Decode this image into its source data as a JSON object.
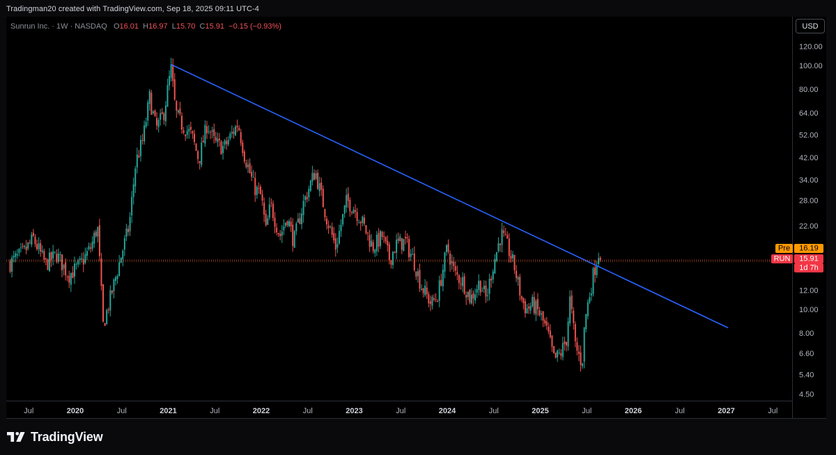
{
  "header": {
    "caption": "Tradingman20 created with TradingView.com, Sep 18, 2025 09:11 UTC-4"
  },
  "legend": {
    "symbol": "Sunrun Inc. · 1W · NASDAQ",
    "o_label": "O",
    "o_value": "16.01",
    "h_label": "H",
    "h_value": "16.97",
    "l_label": "L",
    "l_value": "15.70",
    "c_label": "C",
    "c_value": "15.91",
    "change": "−0.15 (−0.93%)"
  },
  "currency_button": "USD",
  "price_badges": {
    "pre_label": "Pre",
    "pre_value": "16.19",
    "run_label": "RUN",
    "run_value": "15.91",
    "countdown": "1d 7h"
  },
  "brand": {
    "name": "TradingView"
  },
  "colors": {
    "up": "#26a69a",
    "down": "#ef5350",
    "trendline": "#2962ff",
    "last_price_line": "#ef5350",
    "pre_badge": "#ff9800",
    "run_badge": "#f23645"
  },
  "chart_data": {
    "type": "candlestick",
    "symbol": "RUN",
    "interval": "1W",
    "y_scale": "log",
    "ylim": [
      4.4,
      125
    ],
    "y_ticks": [
      4.5,
      5.4,
      6.6,
      8.0,
      10.0,
      12.0,
      15.91,
      16.19,
      22.0,
      28.0,
      34.0,
      42.0,
      52.0,
      64.0,
      80.0,
      100.0,
      120.0
    ],
    "y_tick_labels": [
      "4.50",
      "5.40",
      "6.60",
      "8.00",
      "10.00",
      "12.00",
      "",
      "",
      "22.00",
      "28.00",
      "34.00",
      "42.00",
      "52.00",
      "64.00",
      "80.00",
      "100.00",
      "120.00"
    ],
    "x_ticks": [
      {
        "t": 2019.5,
        "label": "Jul",
        "bold": false
      },
      {
        "t": 2020.0,
        "label": "2020",
        "bold": true
      },
      {
        "t": 2020.5,
        "label": "Jul",
        "bold": false
      },
      {
        "t": 2021.0,
        "label": "2021",
        "bold": true
      },
      {
        "t": 2021.5,
        "label": "Jul",
        "bold": false
      },
      {
        "t": 2022.0,
        "label": "2022",
        "bold": true
      },
      {
        "t": 2022.5,
        "label": "Jul",
        "bold": false
      },
      {
        "t": 2023.0,
        "label": "2023",
        "bold": true
      },
      {
        "t": 2023.5,
        "label": "Jul",
        "bold": false
      },
      {
        "t": 2024.0,
        "label": "2024",
        "bold": true
      },
      {
        "t": 2024.5,
        "label": "Jul",
        "bold": false
      },
      {
        "t": 2025.0,
        "label": "2025",
        "bold": true
      },
      {
        "t": 2025.5,
        "label": "Jul",
        "bold": false
      },
      {
        "t": 2026.0,
        "label": "2026",
        "bold": true
      },
      {
        "t": 2026.5,
        "label": "Jul",
        "bold": false
      },
      {
        "t": 2027.0,
        "label": "2027",
        "bold": true
      },
      {
        "t": 2027.5,
        "label": "Jul",
        "bold": false
      }
    ],
    "close_path": [
      [
        2019.3,
        15.5
      ],
      [
        2019.45,
        17.2
      ],
      [
        2019.55,
        19.5
      ],
      [
        2019.68,
        15.3
      ],
      [
        2019.8,
        16.8
      ],
      [
        2019.93,
        13.8
      ],
      [
        2020.05,
        15.2
      ],
      [
        2020.17,
        18.0
      ],
      [
        2020.24,
        22.0
      ],
      [
        2020.3,
        8.6
      ],
      [
        2020.4,
        12.0
      ],
      [
        2020.5,
        17.0
      ],
      [
        2020.58,
        22.0
      ],
      [
        2020.65,
        40.0
      ],
      [
        2020.73,
        50.0
      ],
      [
        2020.8,
        74.0
      ],
      [
        2020.87,
        55.0
      ],
      [
        2020.95,
        63.0
      ],
      [
        2021.03,
        97.0
      ],
      [
        2021.08,
        64.0
      ],
      [
        2021.15,
        57.0
      ],
      [
        2021.25,
        52.0
      ],
      [
        2021.33,
        41.0
      ],
      [
        2021.42,
        58.0
      ],
      [
        2021.5,
        48.0
      ],
      [
        2021.6,
        46.0
      ],
      [
        2021.75,
        58.0
      ],
      [
        2021.82,
        43.0
      ],
      [
        2021.92,
        32.0
      ],
      [
        2022.0,
        29.0
      ],
      [
        2022.05,
        21.0
      ],
      [
        2022.1,
        27.0
      ],
      [
        2022.2,
        20.0
      ],
      [
        2022.28,
        24.0
      ],
      [
        2022.35,
        19.0
      ],
      [
        2022.45,
        27.0
      ],
      [
        2022.58,
        37.0
      ],
      [
        2022.7,
        24.0
      ],
      [
        2022.8,
        18.0
      ],
      [
        2022.92,
        28.0
      ],
      [
        2023.0,
        26.0
      ],
      [
        2023.08,
        23.0
      ],
      [
        2023.2,
        18.0
      ],
      [
        2023.3,
        20.0
      ],
      [
        2023.38,
        16.0
      ],
      [
        2023.45,
        18.5
      ],
      [
        2023.55,
        19.0
      ],
      [
        2023.65,
        15.5
      ],
      [
        2023.72,
        12.5
      ],
      [
        2023.83,
        10.5
      ],
      [
        2023.9,
        11.5
      ],
      [
        2024.0,
        18.0
      ],
      [
        2024.08,
        14.0
      ],
      [
        2024.17,
        13.0
      ],
      [
        2024.25,
        11.0
      ],
      [
        2024.35,
        13.0
      ],
      [
        2024.42,
        11.0
      ],
      [
        2024.48,
        14.5
      ],
      [
        2024.58,
        20.5
      ],
      [
        2024.65,
        18.0
      ],
      [
        2024.72,
        15.0
      ],
      [
        2024.8,
        11.0
      ],
      [
        2024.85,
        10.0
      ],
      [
        2024.92,
        10.5
      ],
      [
        2025.0,
        9.5
      ],
      [
        2025.08,
        8.0
      ],
      [
        2025.15,
        6.2
      ],
      [
        2025.22,
        6.6
      ],
      [
        2025.28,
        7.5
      ],
      [
        2025.32,
        11.0
      ],
      [
        2025.38,
        7.0
      ],
      [
        2025.45,
        6.0
      ],
      [
        2025.48,
        9.0
      ],
      [
        2025.52,
        11.0
      ],
      [
        2025.58,
        14.5
      ],
      [
        2025.63,
        17.2
      ],
      [
        2025.66,
        15.91
      ]
    ],
    "trendline": {
      "from": {
        "t": 2021.03,
        "price": 101.0
      },
      "to": {
        "t": 2027.02,
        "price": 8.4
      }
    },
    "last_price": 15.91,
    "pre_market_price": 16.19
  }
}
